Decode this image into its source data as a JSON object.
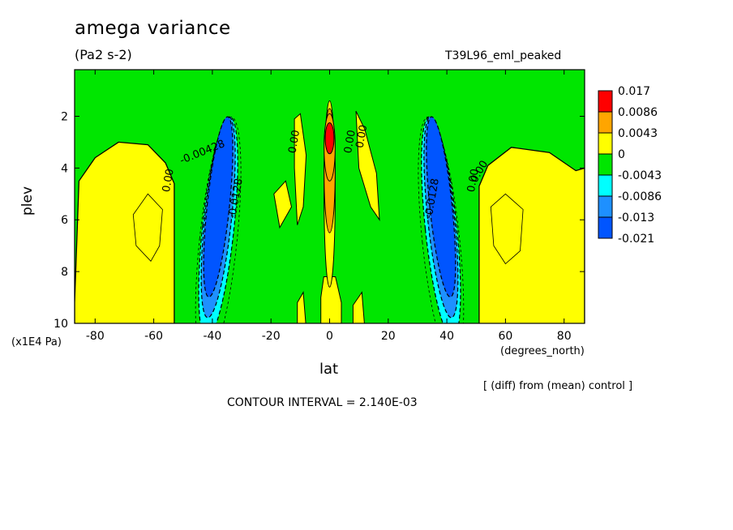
{
  "chart_data": {
    "type": "heatmap",
    "title": "amega variance",
    "units": "(Pa2 s-2)",
    "run_id": "T39L96_eml_peaked",
    "xlabel": "lat",
    "xunits": "(degrees_north)",
    "ylabel": "plev",
    "yunits": "(x1E4 Pa)",
    "xlim": [
      -87,
      87
    ],
    "ylim": [
      10,
      0.2
    ],
    "xticks": [
      "-80",
      "-60",
      "-40",
      "-20",
      "0",
      "20",
      "40",
      "60",
      "80"
    ],
    "yticks": [
      "2",
      "4",
      "6",
      "8",
      "10"
    ],
    "legend": {
      "placement": "right",
      "levels": [
        "0.017",
        "0.0086",
        "0.0043",
        "0",
        "-0.0043",
        "-0.0086",
        "-0.013",
        "-0.021"
      ],
      "colors": [
        "#ff0000",
        "#ffa500",
        "#ffff00",
        "#00e600",
        "#00ffff",
        "#1e90ff",
        "#0055ff"
      ]
    },
    "contour_labels": [
      "-0.00428",
      "-0.0128",
      "-0.0128",
      "0.00",
      "0.00",
      "0.00",
      "0.00",
      "0.00",
      "0.00"
    ],
    "footnote": "[ (diff) from (mean) control ]",
    "contour_interval": "CONTOUR INTERVAL = 2.140E-03"
  }
}
